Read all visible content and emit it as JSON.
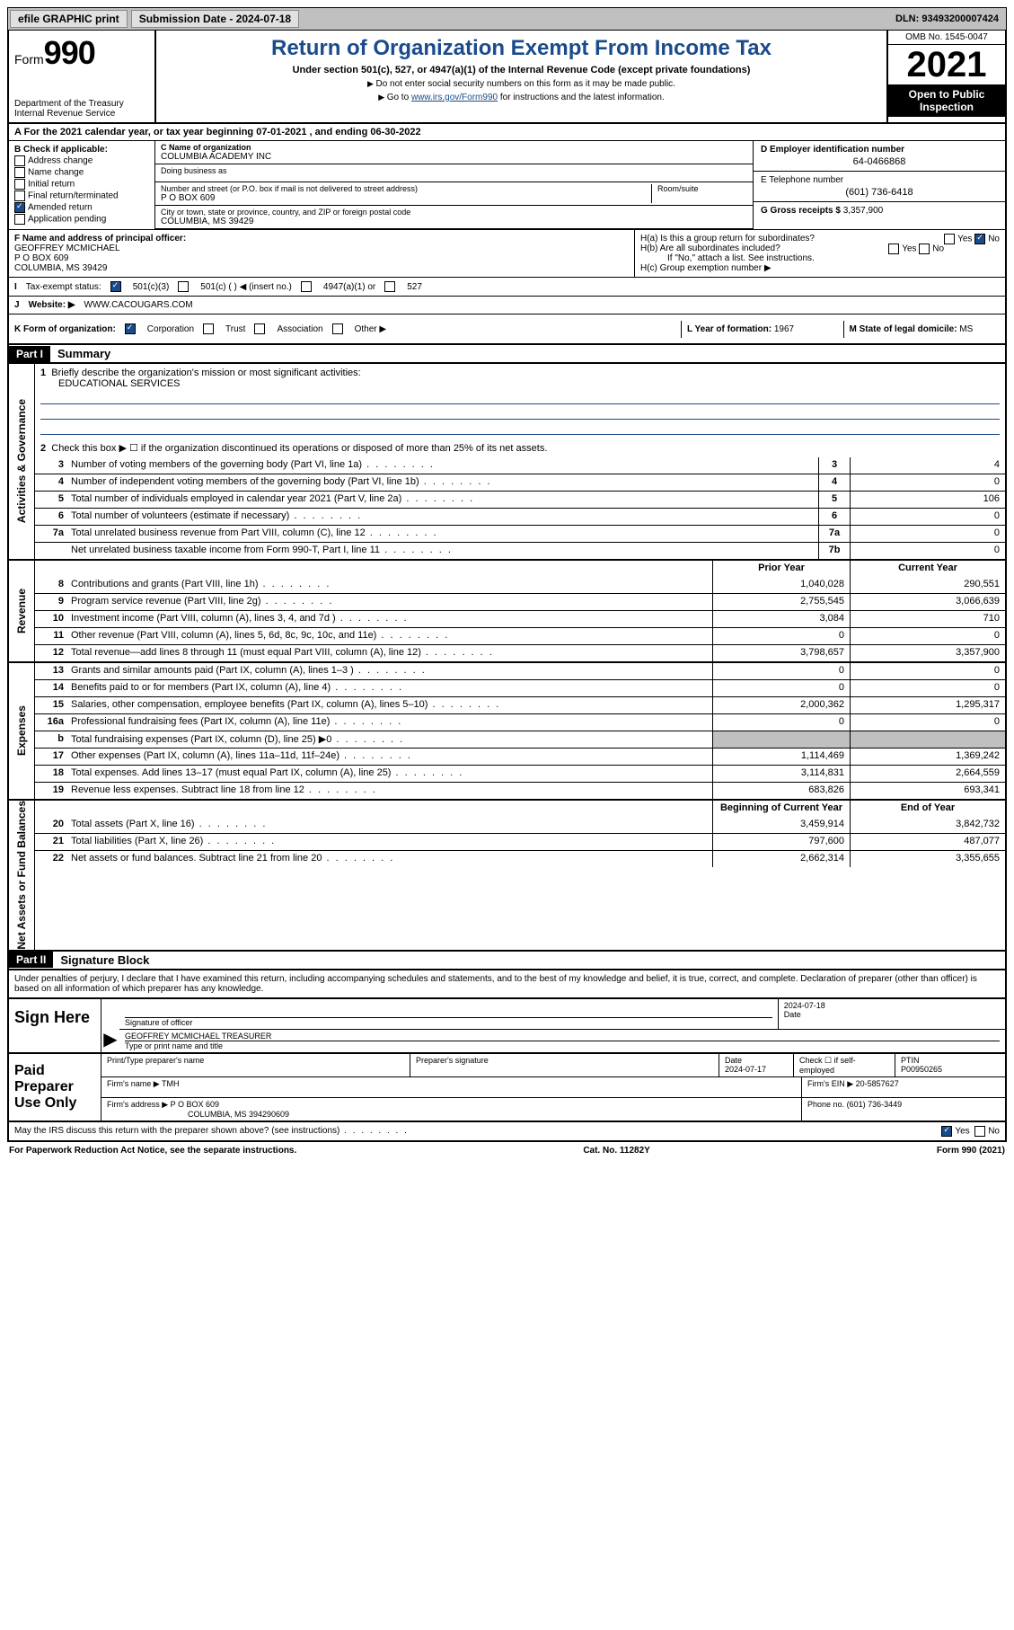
{
  "topbar": {
    "efile": "efile GRAPHIC print",
    "submission_label": "Submission Date - 2024-07-18",
    "dln": "DLN: 93493200007424"
  },
  "header": {
    "form_prefix": "Form",
    "form_number": "990",
    "dept": "Department of the Treasury",
    "irs": "Internal Revenue Service",
    "title": "Return of Organization Exempt From Income Tax",
    "sub": "Under section 501(c), 527, or 4947(a)(1) of the Internal Revenue Code (except private foundations)",
    "note1": "Do not enter social security numbers on this form as it may be made public.",
    "note2_pre": "Go to ",
    "note2_link": "www.irs.gov/Form990",
    "note2_post": " for instructions and the latest information.",
    "omb": "OMB No. 1545-0047",
    "year": "2021",
    "open": "Open to Public Inspection"
  },
  "lineA": "For the 2021 calendar year, or tax year beginning 07-01-2021  , and ending 06-30-2022",
  "colB": {
    "label": "B Check if applicable:",
    "opts": [
      "Address change",
      "Name change",
      "Initial return",
      "Final return/terminated",
      "Amended return",
      "Application pending"
    ],
    "checked_index": 4
  },
  "colC": {
    "name_lbl": "C Name of organization",
    "name": "COLUMBIA ACADEMY INC",
    "dba_lbl": "Doing business as",
    "dba": "",
    "addr_lbl": "Number and street (or P.O. box if mail is not delivered to street address)",
    "room_lbl": "Room/suite",
    "addr": "P O BOX 609",
    "city_lbl": "City or town, state or province, country, and ZIP or foreign postal code",
    "city": "COLUMBIA, MS  39429"
  },
  "colD": {
    "ein_lbl": "D Employer identification number",
    "ein": "64-0466868",
    "phone_lbl": "E Telephone number",
    "phone": "(601) 736-6418",
    "gross_lbl": "G Gross receipts $",
    "gross": "3,357,900"
  },
  "rowF": {
    "lbl": "F  Name and address of principal officer:",
    "name": "GEOFFREY MCMICHAEL",
    "addr1": "P O BOX 609",
    "addr2": "COLUMBIA, MS  39429"
  },
  "rowH": {
    "ha": "H(a)  Is this a group return for subordinates?",
    "hb": "H(b)  Are all subordinates included?",
    "hb_note": "If \"No,\" attach a list. See instructions.",
    "hc": "H(c)  Group exemption number ▶",
    "yes": "Yes",
    "no": "No"
  },
  "rowI": {
    "lbl": "Tax-exempt status:",
    "opts": [
      "501(c)(3)",
      "501(c) (  ) ◀ (insert no.)",
      "4947(a)(1) or",
      "527"
    ]
  },
  "rowJ": {
    "lbl": "Website: ▶",
    "val": "WWW.CACOUGARS.COM"
  },
  "rowK": {
    "lbl": "K Form of organization:",
    "opts": [
      "Corporation",
      "Trust",
      "Association",
      "Other ▶"
    ],
    "l_lbl": "L Year of formation:",
    "l_val": "1967",
    "m_lbl": "M State of legal domicile:",
    "m_val": "MS"
  },
  "part1": {
    "tag": "Part I",
    "title": "Summary",
    "q1": "Briefly describe the organization's mission or most significant activities:",
    "mission": "EDUCATIONAL SERVICES",
    "q2": "Check this box ▶ ☐  if the organization discontinued its operations or disposed of more than 25% of its net assets."
  },
  "gov_lines": [
    {
      "n": "3",
      "d": "Number of voting members of the governing body (Part VI, line 1a)",
      "b": "3",
      "v": "4"
    },
    {
      "n": "4",
      "d": "Number of independent voting members of the governing body (Part VI, line 1b)",
      "b": "4",
      "v": "0"
    },
    {
      "n": "5",
      "d": "Total number of individuals employed in calendar year 2021 (Part V, line 2a)",
      "b": "5",
      "v": "106"
    },
    {
      "n": "6",
      "d": "Total number of volunteers (estimate if necessary)",
      "b": "6",
      "v": "0"
    },
    {
      "n": "7a",
      "d": "Total unrelated business revenue from Part VIII, column (C), line 12",
      "b": "7a",
      "v": "0"
    },
    {
      "n": "",
      "d": "Net unrelated business taxable income from Form 990-T, Part I, line 11",
      "b": "7b",
      "v": "0"
    }
  ],
  "rev_head": {
    "py": "Prior Year",
    "cy": "Current Year"
  },
  "rev_lines": [
    {
      "n": "8",
      "d": "Contributions and grants (Part VIII, line 1h)",
      "py": "1,040,028",
      "cy": "290,551"
    },
    {
      "n": "9",
      "d": "Program service revenue (Part VIII, line 2g)",
      "py": "2,755,545",
      "cy": "3,066,639"
    },
    {
      "n": "10",
      "d": "Investment income (Part VIII, column (A), lines 3, 4, and 7d )",
      "py": "3,084",
      "cy": "710"
    },
    {
      "n": "11",
      "d": "Other revenue (Part VIII, column (A), lines 5, 6d, 8c, 9c, 10c, and 11e)",
      "py": "0",
      "cy": "0"
    },
    {
      "n": "12",
      "d": "Total revenue—add lines 8 through 11 (must equal Part VIII, column (A), line 12)",
      "py": "3,798,657",
      "cy": "3,357,900"
    }
  ],
  "exp_lines": [
    {
      "n": "13",
      "d": "Grants and similar amounts paid (Part IX, column (A), lines 1–3 )",
      "py": "0",
      "cy": "0"
    },
    {
      "n": "14",
      "d": "Benefits paid to or for members (Part IX, column (A), line 4)",
      "py": "0",
      "cy": "0"
    },
    {
      "n": "15",
      "d": "Salaries, other compensation, employee benefits (Part IX, column (A), lines 5–10)",
      "py": "2,000,362",
      "cy": "1,295,317"
    },
    {
      "n": "16a",
      "d": "Professional fundraising fees (Part IX, column (A), line 11e)",
      "py": "0",
      "cy": "0"
    },
    {
      "n": "b",
      "d": "Total fundraising expenses (Part IX, column (D), line 25) ▶0",
      "py": "",
      "cy": "",
      "grey": true
    },
    {
      "n": "17",
      "d": "Other expenses (Part IX, column (A), lines 11a–11d, 11f–24e)",
      "py": "1,114,469",
      "cy": "1,369,242"
    },
    {
      "n": "18",
      "d": "Total expenses. Add lines 13–17 (must equal Part IX, column (A), line 25)",
      "py": "3,114,831",
      "cy": "2,664,559"
    },
    {
      "n": "19",
      "d": "Revenue less expenses. Subtract line 18 from line 12",
      "py": "683,826",
      "cy": "693,341"
    }
  ],
  "na_head": {
    "py": "Beginning of Current Year",
    "cy": "End of Year"
  },
  "na_lines": [
    {
      "n": "20",
      "d": "Total assets (Part X, line 16)",
      "py": "3,459,914",
      "cy": "3,842,732"
    },
    {
      "n": "21",
      "d": "Total liabilities (Part X, line 26)",
      "py": "797,600",
      "cy": "487,077"
    },
    {
      "n": "22",
      "d": "Net assets or fund balances. Subtract line 21 from line 20",
      "py": "2,662,314",
      "cy": "3,355,655"
    }
  ],
  "part2": {
    "tag": "Part II",
    "title": "Signature Block",
    "decl": "Under penalties of perjury, I declare that I have examined this return, including accompanying schedules and statements, and to the best of my knowledge and belief, it is true, correct, and complete. Declaration of preparer (other than officer) is based on all information of which preparer has any knowledge."
  },
  "sign": {
    "here": "Sign Here",
    "sig_lbl": "Signature of officer",
    "date_lbl": "Date",
    "date": "2024-07-18",
    "name": "GEOFFREY MCMICHAEL  TREASURER",
    "name_lbl": "Type or print name and title"
  },
  "prep": {
    "here": "Paid Preparer Use Only",
    "name_lbl": "Print/Type preparer's name",
    "sig_lbl": "Preparer's signature",
    "date_lbl": "Date",
    "date": "2024-07-17",
    "check_lbl": "Check ☐ if self-employed",
    "ptin_lbl": "PTIN",
    "ptin": "P00950265",
    "firm_name_lbl": "Firm's name   ▶",
    "firm_name": "TMH",
    "firm_ein_lbl": "Firm's EIN ▶",
    "firm_ein": "20-5857627",
    "firm_addr_lbl": "Firm's address ▶",
    "firm_addr": "P O BOX 609",
    "firm_city": "COLUMBIA, MS  394290609",
    "phone_lbl": "Phone no.",
    "phone": "(601) 736-3449"
  },
  "may_discuss": "May the IRS discuss this return with the preparer shown above? (see instructions)",
  "footer": {
    "left": "For Paperwork Reduction Act Notice, see the separate instructions.",
    "mid": "Cat. No. 11282Y",
    "right": "Form 990 (2021)"
  }
}
